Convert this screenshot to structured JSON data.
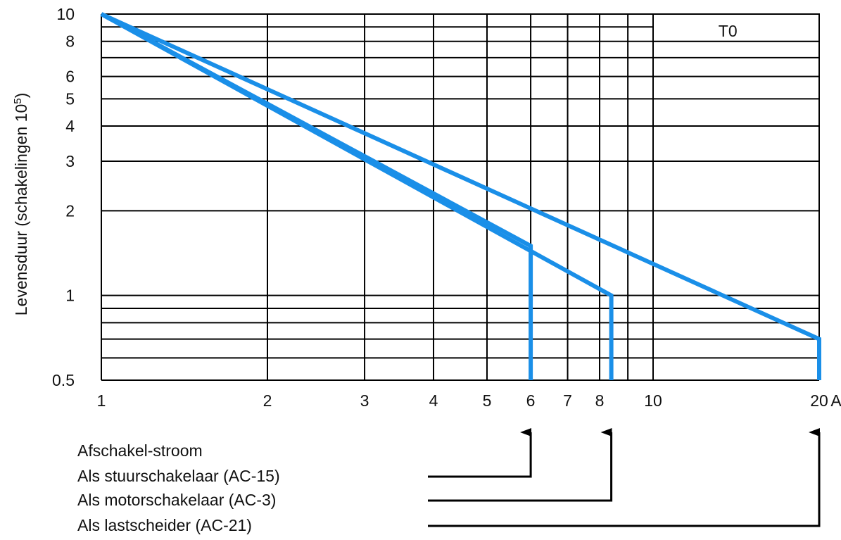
{
  "chart_data": {
    "type": "line",
    "x_scale": "log",
    "y_scale": "log",
    "xlim": [
      1,
      20
    ],
    "ylim": [
      0.5,
      10
    ],
    "x_unit": "A",
    "ylabel_main": "Levensduur (schakelingen 10",
    "ylabel_exp": "5",
    "ylabel_close": ")",
    "x_ticks": [
      {
        "value": 1,
        "label": "1"
      },
      {
        "value": 2,
        "label": "2"
      },
      {
        "value": 3,
        "label": "3"
      },
      {
        "value": 4,
        "label": "4"
      },
      {
        "value": 5,
        "label": "5"
      },
      {
        "value": 6,
        "label": "6"
      },
      {
        "value": 7,
        "label": "7"
      },
      {
        "value": 8,
        "label": "8"
      },
      {
        "value": 10,
        "label": "10"
      },
      {
        "value": 20,
        "label": "20"
      }
    ],
    "x_unit_label": "A",
    "y_ticks": [
      {
        "value": 10,
        "label": "10"
      },
      {
        "value": 8,
        "label": "8"
      },
      {
        "value": 6,
        "label": "6"
      },
      {
        "value": 5,
        "label": "5"
      },
      {
        "value": 4,
        "label": "4"
      },
      {
        "value": 3,
        "label": "3"
      },
      {
        "value": 2,
        "label": "2"
      },
      {
        "value": 1,
        "label": "1"
      },
      {
        "value": 0.5,
        "label": "0.5"
      }
    ],
    "x_gridlines": [
      1,
      2,
      3,
      4,
      5,
      6,
      7,
      8,
      9,
      10,
      20
    ],
    "y_gridlines": [
      0.5,
      0.6,
      0.7,
      0.8,
      0.9,
      1,
      2,
      3,
      4,
      5,
      6,
      7,
      8,
      9,
      10
    ],
    "box_label": "T0",
    "grid": true,
    "line_color": "#1a8fe8",
    "series": [
      {
        "points": [
          [
            1,
            10
          ],
          [
            6,
            1.5
          ],
          [
            6,
            0.5
          ]
        ]
      },
      {
        "points": [
          [
            1,
            10
          ],
          [
            8.4,
            1
          ],
          [
            8.4,
            0.5
          ]
        ]
      },
      {
        "points": [
          [
            1,
            10
          ],
          [
            20,
            0.7
          ],
          [
            20,
            0.5
          ]
        ]
      }
    ],
    "legend": {
      "title": "Afschakel-stroom",
      "items": [
        {
          "label": "Als stuurschakelaar (AC-15)",
          "target_x": 6
        },
        {
          "label": "Als motorschakelaar (AC-3)",
          "target_x": 8.4
        },
        {
          "label": "Als lastscheider (AC-21)",
          "target_x": 20
        }
      ]
    }
  }
}
